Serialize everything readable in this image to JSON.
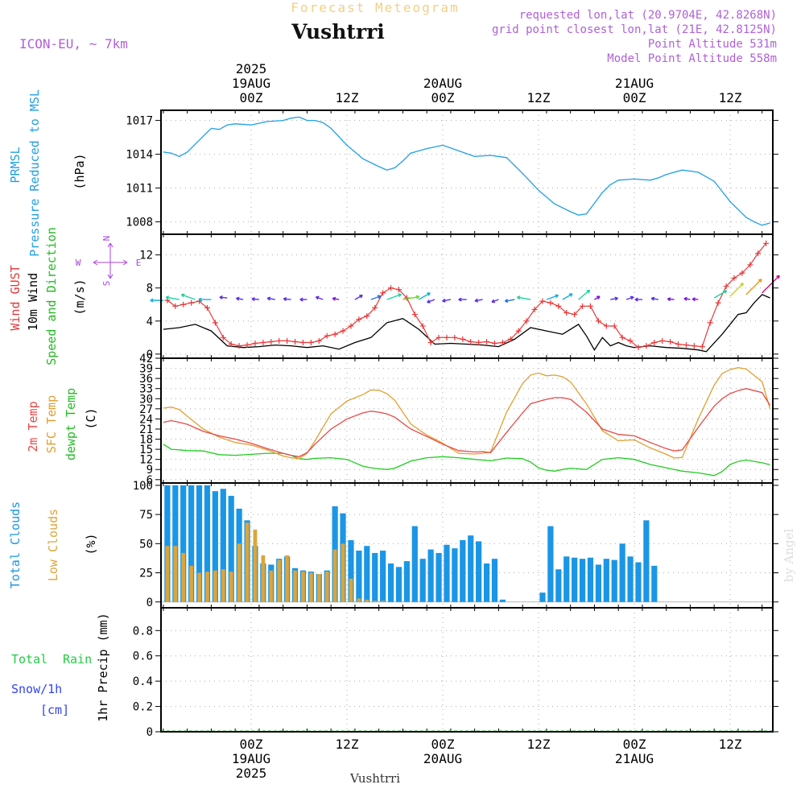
{
  "header": {
    "product": "Forecast Meteogram",
    "location": "Vushtrri",
    "model": "ICON-EU, ~ 7km",
    "requested": "requested lon,lat (20.9704E, 42.8268N)",
    "grid_point": "grid point closest lon,lat (21E, 42.8125N)",
    "point_altitude": "Point Altitude 531m",
    "model_altitude": "Model Point Altitude 558m"
  },
  "footer": {
    "location": "Vushtrri",
    "watermark": "by Angel"
  },
  "colors": {
    "pressure": "#1f9fe6",
    "gust": "#e8393a",
    "wind": "#000000",
    "t2m": "#e84848",
    "sfc": "#e0a030",
    "dewpt": "#22cc22",
    "total_clouds": "#1a96e6",
    "low_clouds": "#dca53a",
    "rain": "#22cc44",
    "snow": "#3344ee",
    "arrow_dir": "#aa44dd"
  },
  "time_axis": {
    "top_labels": [
      {
        "h": 0,
        "lines": [
          "2025",
          "19AUG",
          "00Z"
        ]
      },
      {
        "h": 12,
        "lines": [
          "12Z"
        ]
      },
      {
        "h": 24,
        "lines": [
          "20AUG",
          "00Z"
        ]
      },
      {
        "h": 36,
        "lines": [
          "12Z"
        ]
      },
      {
        "h": 48,
        "lines": [
          "21AUG",
          "00Z"
        ]
      },
      {
        "h": 60,
        "lines": [
          "12Z"
        ]
      }
    ],
    "bottom_labels": [
      {
        "h": 0,
        "lines": [
          "00Z",
          "19AUG",
          "2025"
        ]
      },
      {
        "h": 12,
        "lines": [
          "12Z"
        ]
      },
      {
        "h": 24,
        "lines": [
          "00Z",
          "20AUG"
        ]
      },
      {
        "h": 36,
        "lines": [
          "12Z"
        ]
      },
      {
        "h": 48,
        "lines": [
          "00Z",
          "21AUG"
        ]
      },
      {
        "h": 60,
        "lines": [
          "12Z"
        ]
      }
    ]
  },
  "panel_labels": {
    "pressure": [
      "PRMSL",
      "Pressure Reduced to MSL",
      "(hPa)"
    ],
    "wind": [
      "Wind GUST",
      "10m Wind",
      "Speed and Direction",
      "(m/s)"
    ],
    "compass": {
      "n": "N",
      "s": "S",
      "w": "W",
      "e": "E"
    },
    "temp": [
      "2m Temp",
      "SFC Temp",
      "dewpt Temp",
      "(C)"
    ],
    "clouds": [
      "Total Clouds",
      "Low Clouds",
      "(%)"
    ],
    "precip": [
      "Total",
      "Rain",
      "Snow/1h",
      "[cm]",
      "1hr Precip (mm)"
    ]
  },
  "chart_data": [
    {
      "type": "line",
      "name": "pressure",
      "ylim": [
        1006.9,
        1017.9
      ],
      "yticks": [
        1008,
        1011,
        1014,
        1017
      ],
      "x": [
        -11,
        -10,
        -9,
        -8,
        -6,
        -5,
        -4,
        -3,
        -2,
        0,
        2,
        4,
        5,
        6,
        7,
        8,
        9,
        10,
        12,
        14,
        16,
        17,
        18,
        19,
        20,
        22,
        24,
        26,
        28,
        30,
        32,
        34,
        36,
        38,
        40,
        41,
        42,
        44,
        45,
        46,
        48,
        50,
        51,
        52,
        54,
        56,
        58,
        60,
        61,
        62,
        63,
        64,
        65
      ],
      "y": [
        1014.2,
        1014.1,
        1013.8,
        1014.2,
        1015.6,
        1016.3,
        1016.2,
        1016.6,
        1016.7,
        1016.6,
        1016.9,
        1017.0,
        1017.2,
        1017.3,
        1017.0,
        1017.0,
        1016.8,
        1016.3,
        1014.8,
        1013.6,
        1012.9,
        1012.6,
        1012.8,
        1013.4,
        1014.1,
        1014.5,
        1014.8,
        1014.3,
        1013.8,
        1013.9,
        1013.7,
        1012.3,
        1010.8,
        1009.6,
        1008.9,
        1008.6,
        1008.7,
        1010.6,
        1011.3,
        1011.7,
        1011.8,
        1011.7,
        1011.9,
        1012.2,
        1012.6,
        1012.4,
        1011.6,
        1009.8,
        1009.1,
        1008.4,
        1008.0,
        1007.7,
        1007.9
      ]
    },
    {
      "type": "line",
      "name": "wind",
      "ylim": [
        -0.5,
        14.5
      ],
      "yticks": [
        0,
        4,
        8,
        12
      ],
      "gust_x": [
        -10.5,
        -9.5,
        -8.5,
        -7.5,
        -6.5,
        -5.5,
        -4.5,
        -3.5,
        -2.5,
        -1.5,
        -0.5,
        0.5,
        1.5,
        2.5,
        3.5,
        4.5,
        5.5,
        6.5,
        7.5,
        8.5,
        9.5,
        10.5,
        11.5,
        12.5,
        13.5,
        14.5,
        15.5,
        16.5,
        17.5,
        18.5,
        19.5,
        20.5,
        21.5,
        22.5,
        23.5,
        24.5,
        25.5,
        26.5,
        27.5,
        28.5,
        29.5,
        30.5,
        31.5,
        32.5,
        33.5,
        34.5,
        35.5,
        36.5,
        37.5,
        38.5,
        39.5,
        40.5,
        41.5,
        42.5,
        43.5,
        44.5,
        45.5,
        46.5,
        47.5,
        48.5,
        49.5,
        50.5,
        51.5,
        52.5,
        53.5,
        54.5,
        55.5,
        56.5,
        57.5,
        58.5,
        59.5,
        60.5,
        61.5,
        62.5,
        63.5,
        64.5
      ],
      "gust_y": [
        6.5,
        5.8,
        6.0,
        6.2,
        6.4,
        5.6,
        3.8,
        2.0,
        1.2,
        1.0,
        1.1,
        1.3,
        1.4,
        1.5,
        1.6,
        1.6,
        1.5,
        1.4,
        1.4,
        1.6,
        2.2,
        2.4,
        2.8,
        3.4,
        4.2,
        4.6,
        5.6,
        7.4,
        8.0,
        7.8,
        6.8,
        4.8,
        3.4,
        1.4,
        2.0,
        2.0,
        2.0,
        1.8,
        1.5,
        1.4,
        1.5,
        1.3,
        1.4,
        1.8,
        2.8,
        4.0,
        5.4,
        6.4,
        6.2,
        5.8,
        5.0,
        4.8,
        5.8,
        5.8,
        4.0,
        3.4,
        3.4,
        2.0,
        1.6,
        0.8,
        1.0,
        1.4,
        1.6,
        1.5,
        1.2,
        1.1,
        1.0,
        0.9,
        3.8,
        6.2,
        8.2,
        9.2,
        9.8,
        10.8,
        12.2,
        13.4
      ],
      "wind_x": [
        -11,
        -9,
        -7,
        -5,
        -3,
        -1,
        1,
        3,
        5,
        7,
        9,
        11,
        13,
        15,
        17,
        19,
        21,
        23,
        25,
        27,
        29,
        31,
        33,
        35,
        37,
        39,
        41,
        42,
        43,
        44,
        45,
        46,
        47,
        48,
        49,
        50,
        52,
        54,
        56,
        57,
        59,
        61,
        62,
        63,
        64,
        65
      ],
      "wind_y": [
        3.0,
        3.2,
        3.6,
        2.8,
        1.0,
        0.8,
        0.9,
        1.1,
        1.0,
        0.8,
        1.0,
        0.6,
        1.4,
        2.0,
        3.8,
        4.3,
        3.0,
        1.2,
        1.3,
        1.2,
        1.1,
        0.9,
        1.8,
        3.2,
        2.8,
        2.4,
        3.6,
        2.2,
        0.5,
        2.0,
        1.0,
        1.4,
        1.0,
        0.8,
        0.9,
        1.0,
        0.8,
        0.7,
        0.5,
        0.3,
        2.4,
        4.8,
        5.0,
        6.2,
        7.2,
        6.8
      ],
      "arrow_x": [
        -11,
        -9,
        -7,
        -5,
        -3,
        -1,
        1,
        3,
        5,
        7,
        9,
        11,
        13,
        15,
        17,
        19,
        21,
        23,
        25,
        27,
        29,
        31,
        33,
        35,
        37,
        39,
        41,
        43,
        45,
        47,
        49,
        51,
        53,
        55,
        56,
        58,
        60,
        62,
        64
      ],
      "arrow_y": [
        6.5,
        6.6,
        6.6,
        6.6,
        6.8,
        6.6,
        6.6,
        6.6,
        6.6,
        6.6,
        6.6,
        6.6,
        6.6,
        6.6,
        6.6,
        6.6,
        6.6,
        6.6,
        6.6,
        6.6,
        6.6,
        6.6,
        6.6,
        6.6,
        6.6,
        6.6,
        6.6,
        6.6,
        6.6,
        6.6,
        6.6,
        6.6,
        6.6,
        6.6,
        6.6,
        6.8,
        7.0,
        7.2,
        7.4
      ],
      "arrow_dir": [
        90,
        100,
        110,
        90,
        95,
        100,
        95,
        100,
        95,
        90,
        110,
        100,
        240,
        250,
        250,
        260,
        240,
        70,
        80,
        90,
        80,
        70,
        80,
        100,
        250,
        240,
        230,
        240,
        260,
        250,
        90,
        100,
        95,
        100,
        95,
        240,
        225,
        225,
        225
      ],
      "arrow_speed": [
        3.0,
        3.2,
        3.6,
        2.8,
        1.0,
        0.8,
        0.9,
        1.1,
        1.0,
        0.8,
        1.0,
        0.6,
        1.4,
        2.0,
        3.8,
        4.3,
        3.0,
        1.2,
        1.3,
        1.2,
        1.1,
        0.9,
        1.8,
        3.2,
        2.8,
        2.4,
        3.6,
        0.5,
        1.0,
        1.0,
        0.9,
        0.8,
        0.7,
        0.5,
        0.4,
        3.5,
        5.0,
        6.2,
        7.2
      ]
    },
    {
      "type": "line",
      "name": "temperature",
      "ylim": [
        5,
        42
      ],
      "yticks": [
        6,
        9,
        12,
        15,
        18,
        21,
        24,
        27,
        30,
        33,
        36,
        39,
        42
      ],
      "x": [
        -11,
        -10,
        -9,
        -8,
        -6,
        -4,
        -2,
        0,
        2,
        4,
        5,
        6,
        7,
        8,
        10,
        12,
        14,
        15,
        16,
        17,
        18,
        20,
        22,
        24,
        26,
        28,
        29,
        30,
        32,
        34,
        35,
        36,
        37,
        38,
        39,
        40,
        42,
        44,
        46,
        48,
        50,
        52,
        53,
        54,
        56,
        58,
        59,
        60,
        61,
        62,
        64,
        65
      ],
      "t2m": [
        23.0,
        23.5,
        23.0,
        22.4,
        20.3,
        19.0,
        18.0,
        16.8,
        15.2,
        13.8,
        13.2,
        12.8,
        14.0,
        16.5,
        21.0,
        24.0,
        25.8,
        26.3,
        26.0,
        25.5,
        24.5,
        21.0,
        18.8,
        16.5,
        14.6,
        14.2,
        14.3,
        14.0,
        20.0,
        25.8,
        28.5,
        29.2,
        29.8,
        30.3,
        30.3,
        29.8,
        26.0,
        21.0,
        19.4,
        19.0,
        17.0,
        15.2,
        14.5,
        14.8,
        21.5,
        27.8,
        30.0,
        31.5,
        32.4,
        33.0,
        31.8,
        28.0
      ],
      "sfc": [
        27.2,
        27.5,
        26.8,
        24.8,
        21.0,
        18.6,
        17.0,
        16.3,
        14.8,
        13.0,
        12.5,
        12.2,
        13.8,
        17.5,
        25.5,
        29.3,
        31.2,
        32.6,
        32.5,
        31.5,
        29.5,
        22.5,
        19.2,
        16.8,
        13.8,
        13.6,
        13.8,
        14.2,
        26.0,
        34.5,
        37.0,
        37.6,
        36.8,
        37.0,
        36.5,
        35.0,
        28.5,
        20.5,
        17.5,
        17.8,
        15.4,
        13.5,
        12.4,
        12.6,
        24.0,
        34.0,
        37.5,
        38.6,
        39.2,
        38.8,
        35.0,
        27.0
      ],
      "dewpt": [
        16.5,
        15.0,
        14.8,
        14.6,
        14.5,
        13.4,
        13.2,
        13.5,
        13.8,
        13.8,
        13.2,
        12.2,
        12.0,
        12.3,
        12.5,
        12.0,
        10.0,
        9.5,
        9.2,
        9.0,
        9.4,
        11.5,
        12.5,
        12.8,
        12.5,
        12.0,
        11.8,
        11.6,
        12.4,
        12.2,
        11.2,
        9.5,
        8.8,
        8.5,
        9.0,
        9.4,
        9.0,
        12.0,
        12.5,
        12.0,
        10.5,
        9.5,
        9.0,
        8.5,
        8.0,
        7.2,
        8.4,
        10.5,
        11.4,
        11.8,
        11.0,
        10.4
      ]
    },
    {
      "type": "bar",
      "name": "clouds",
      "ylim": [
        -5,
        102
      ],
      "yticks": [
        0,
        25,
        50,
        75,
        100
      ],
      "x": [
        -10.5,
        -9.5,
        -8.5,
        -7.5,
        -6.5,
        -5.5,
        -4.5,
        -3.5,
        -2.5,
        -1.5,
        -0.5,
        0.5,
        1.5,
        2.5,
        3.5,
        4.5,
        5.5,
        6.5,
        7.5,
        8.5,
        9.5,
        10.5,
        11.5,
        12.5,
        13.5,
        14.5,
        15.5,
        16.5,
        17.5,
        18.5,
        19.5,
        20.5,
        21.5,
        22.5,
        23.5,
        24.5,
        25.5,
        26.5,
        27.5,
        28.5,
        29.5,
        30.5,
        31.5,
        32.5,
        33.5,
        34.5,
        35.5,
        36.5,
        37.5,
        38.5,
        39.5,
        40.5,
        41.5,
        42.5,
        43.5,
        44.5,
        45.5,
        46.5,
        47.5,
        48.5,
        49.5,
        50.5,
        51.5,
        52.5,
        53.5,
        54.5,
        55.5,
        56.5,
        57.5,
        58.5,
        59.5,
        60.5,
        61.5,
        62.5,
        63.5,
        64.5
      ],
      "total": [
        100,
        100,
        100,
        100,
        100,
        100,
        95,
        97,
        91,
        80,
        70,
        48,
        33,
        32,
        37,
        39,
        29,
        27,
        26,
        24,
        27,
        82,
        76,
        53,
        44,
        48,
        42,
        44,
        33,
        30,
        35,
        65,
        37,
        45,
        42,
        49,
        46,
        53,
        57,
        52,
        33,
        37,
        2,
        0,
        0,
        0,
        0,
        8,
        65,
        28,
        39,
        38,
        37,
        38,
        32,
        37,
        36,
        50,
        39,
        34,
        70,
        31,
        0,
        0,
        0,
        0,
        0,
        0,
        0,
        0,
        0,
        0,
        0,
        0,
        0,
        0
      ],
      "low": [
        48,
        48,
        42,
        31,
        25,
        26,
        27,
        28,
        26,
        50,
        68,
        62,
        40,
        27,
        36,
        40,
        27,
        26,
        25,
        24,
        26,
        45,
        50,
        20,
        3,
        2,
        1,
        1,
        0,
        0,
        0,
        0,
        0,
        0,
        0,
        0,
        0,
        0,
        0,
        0,
        0,
        0,
        0,
        0,
        0,
        0,
        0,
        0,
        0,
        0,
        0,
        0,
        0,
        0,
        0,
        0,
        0,
        0,
        0,
        0,
        0,
        0,
        0,
        0,
        0,
        0,
        0,
        0,
        0,
        0,
        0,
        0,
        0,
        0,
        0,
        0
      ]
    },
    {
      "type": "bar",
      "name": "precipitation",
      "ylim": [
        0,
        0.98
      ],
      "yticks": [
        0,
        0.2,
        0.4,
        0.6,
        0.8
      ],
      "x": [
        -10.5,
        0.5,
        12.5,
        24.5,
        36.5,
        48.5,
        60.5,
        64.5
      ],
      "rain": [
        0,
        0,
        0,
        0,
        0,
        0,
        0,
        0
      ],
      "snow": [
        0,
        0,
        0,
        0,
        0,
        0,
        0,
        0
      ]
    }
  ]
}
